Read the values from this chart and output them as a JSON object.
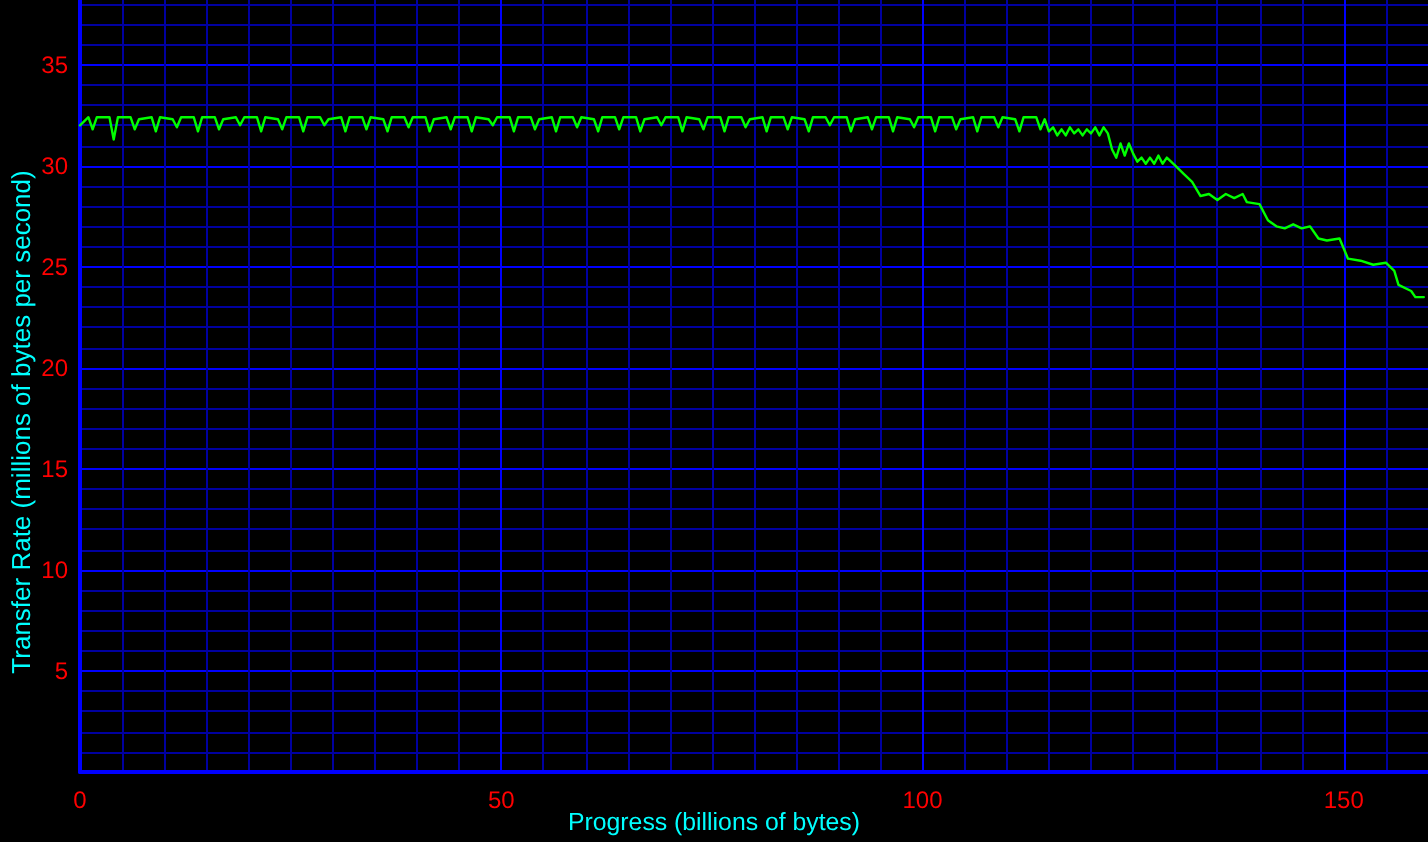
{
  "chart_data": {
    "type": "line",
    "xlabel": "Progress (billions of bytes)",
    "ylabel": "Transfer Rate (millions of bytes per second)",
    "color": "#00ff00",
    "x": [
      0,
      1,
      1.5,
      2,
      3.5,
      4,
      4.5,
      6,
      6.5,
      7,
      8.5,
      9,
      9.5,
      11,
      11.5,
      12,
      13.5,
      14,
      14.5,
      16,
      16.5,
      17,
      18.5,
      19,
      19.5,
      21,
      21.5,
      22,
      23.5,
      24,
      24.5,
      26,
      26.5,
      27,
      28.5,
      29,
      29.5,
      31,
      31.5,
      32,
      33.5,
      34,
      34.5,
      36,
      36.5,
      37,
      38.5,
      39,
      39.5,
      41,
      41.5,
      42,
      43.5,
      44,
      44.5,
      46,
      46.5,
      47,
      48.5,
      49,
      49.5,
      51,
      51.5,
      52,
      53.5,
      54,
      54.5,
      56,
      56.5,
      57,
      58.5,
      59,
      59.5,
      61,
      61.5,
      62,
      63.5,
      64,
      64.5,
      66,
      66.5,
      67,
      68.5,
      69,
      69.5,
      71,
      71.5,
      72,
      73.5,
      74,
      74.5,
      76,
      76.5,
      77,
      78.5,
      79,
      79.5,
      81,
      81.5,
      82,
      83.5,
      84,
      84.5,
      86,
      86.5,
      87,
      88.5,
      89,
      89.5,
      91,
      91.5,
      92,
      93.5,
      94,
      94.5,
      96,
      96.5,
      97,
      98.5,
      99,
      99.5,
      101,
      101.5,
      102,
      103.5,
      104,
      104.5,
      106,
      106.5,
      107,
      108.5,
      109,
      109.5,
      111,
      111.5,
      112,
      113.5,
      114,
      114.5,
      115,
      115.5,
      116,
      116.5,
      117,
      117.5,
      118,
      118.5,
      119,
      119.5,
      120,
      120.5,
      121,
      121.5,
      122,
      122.5,
      123,
      123.5,
      124,
      124.5,
      125,
      125.5,
      126,
      126.5,
      127,
      127.5,
      128,
      128.5,
      129,
      130,
      131,
      132,
      133,
      134,
      135,
      136,
      137,
      138,
      138.5,
      140,
      141,
      142,
      143,
      144,
      145,
      146,
      147,
      148,
      149.5,
      150.5,
      152,
      153.5,
      155,
      156,
      156.5,
      158,
      158.5,
      159.5
    ],
    "values": [
      32.0,
      32.4,
      31.8,
      32.4,
      32.4,
      31.3,
      32.4,
      32.4,
      31.8,
      32.3,
      32.4,
      31.7,
      32.4,
      32.3,
      31.9,
      32.4,
      32.4,
      31.7,
      32.4,
      32.4,
      31.8,
      32.3,
      32.4,
      32.0,
      32.4,
      32.4,
      31.7,
      32.4,
      32.3,
      31.8,
      32.4,
      32.4,
      31.7,
      32.4,
      32.4,
      32.0,
      32.3,
      32.4,
      31.7,
      32.4,
      32.4,
      31.8,
      32.4,
      32.3,
      31.7,
      32.4,
      32.4,
      31.9,
      32.4,
      32.4,
      31.7,
      32.3,
      32.4,
      31.8,
      32.4,
      32.4,
      31.7,
      32.4,
      32.3,
      32.0,
      32.4,
      32.4,
      31.7,
      32.4,
      32.4,
      31.8,
      32.3,
      32.4,
      31.7,
      32.4,
      32.4,
      31.9,
      32.4,
      32.3,
      31.7,
      32.4,
      32.4,
      31.8,
      32.4,
      32.4,
      31.7,
      32.3,
      32.4,
      32.0,
      32.4,
      32.4,
      31.7,
      32.4,
      32.3,
      31.8,
      32.4,
      32.4,
      31.7,
      32.4,
      32.4,
      31.9,
      32.3,
      32.4,
      31.7,
      32.4,
      32.4,
      31.8,
      32.4,
      32.3,
      31.7,
      32.4,
      32.4,
      32.0,
      32.4,
      32.4,
      31.7,
      32.3,
      32.4,
      31.8,
      32.4,
      32.4,
      31.7,
      32.4,
      32.3,
      31.9,
      32.4,
      32.4,
      31.7,
      32.4,
      32.4,
      31.8,
      32.3,
      32.4,
      31.7,
      32.4,
      32.4,
      31.9,
      32.4,
      32.3,
      31.7,
      32.4,
      32.4,
      31.8,
      32.3,
      31.7,
      31.9,
      31.5,
      31.8,
      31.5,
      31.9,
      31.6,
      31.8,
      31.5,
      31.8,
      31.6,
      31.9,
      31.5,
      31.9,
      31.6,
      30.8,
      30.4,
      31.1,
      30.5,
      31.1,
      30.6,
      30.2,
      30.4,
      30.1,
      30.4,
      30.1,
      30.5,
      30.1,
      30.4,
      30.0,
      29.6,
      29.2,
      28.5,
      28.6,
      28.3,
      28.6,
      28.4,
      28.6,
      28.2,
      28.1,
      27.3,
      27.0,
      26.9,
      27.1,
      26.9,
      27.0,
      26.4,
      26.3,
      26.4,
      25.4,
      25.3,
      25.1,
      25.2,
      24.8,
      24.1,
      23.8,
      23.5,
      23.5
    ],
    "xlim": [
      0,
      160
    ],
    "xticks": [
      0,
      {
        "value": 5,
        "label": null
      },
      {
        "value": 10,
        "label": null
      },
      {
        "value": 15,
        "label": null
      },
      {
        "value": 20,
        "label": null
      },
      {
        "value": 25,
        "label": null
      },
      {
        "value": 30,
        "label": null
      },
      {
        "value": 35,
        "label": null
      },
      {
        "value": 40,
        "label": null
      },
      {
        "value": 45,
        "label": null
      },
      50,
      {
        "value": 55,
        "label": null
      },
      {
        "value": 60,
        "label": null
      },
      {
        "value": 65,
        "label": null
      },
      {
        "value": 70,
        "label": null
      },
      {
        "value": 75,
        "label": null
      },
      {
        "value": 80,
        "label": null
      },
      {
        "value": 85,
        "label": null
      },
      {
        "value": 90,
        "label": null
      },
      {
        "value": 95,
        "label": null
      },
      100,
      {
        "value": 105,
        "label": null
      },
      {
        "value": 110,
        "label": null
      },
      {
        "value": 115,
        "label": null
      },
      {
        "value": 120,
        "label": null
      },
      {
        "value": 125,
        "label": null
      },
      {
        "value": 130,
        "label": null
      },
      {
        "value": 135,
        "label": null
      },
      {
        "value": 140,
        "label": null
      },
      {
        "value": 145,
        "label": null
      },
      150,
      {
        "value": 155,
        "label": null
      }
    ],
    "ylim": [
      0,
      38.2
    ],
    "yticks": [
      {
        "value": 0,
        "label": null
      },
      {
        "value": 1,
        "label": null
      },
      {
        "value": 2,
        "label": null
      },
      {
        "value": 3,
        "label": null
      },
      {
        "value": 4,
        "label": null
      },
      5,
      {
        "value": 6,
        "label": null
      },
      {
        "value": 7,
        "label": null
      },
      {
        "value": 8,
        "label": null
      },
      {
        "value": 9,
        "label": null
      },
      10,
      {
        "value": 11,
        "label": null
      },
      {
        "value": 12,
        "label": null
      },
      {
        "value": 13,
        "label": null
      },
      {
        "value": 14,
        "label": null
      },
      15,
      {
        "value": 16,
        "label": null
      },
      {
        "value": 17,
        "label": null
      },
      {
        "value": 18,
        "label": null
      },
      {
        "value": 19,
        "label": null
      },
      20,
      {
        "value": 21,
        "label": null
      },
      {
        "value": 22,
        "label": null
      },
      {
        "value": 23,
        "label": null
      },
      {
        "value": 24,
        "label": null
      },
      25,
      {
        "value": 26,
        "label": null
      },
      {
        "value": 27,
        "label": null
      },
      {
        "value": 28,
        "label": null
      },
      {
        "value": 29,
        "label": null
      },
      30,
      {
        "value": 31,
        "label": null
      },
      {
        "value": 32,
        "label": null
      },
      {
        "value": 33,
        "label": null
      },
      {
        "value": 34,
        "label": null
      },
      35,
      {
        "value": 36,
        "label": null
      },
      {
        "value": 37,
        "label": null
      },
      {
        "value": 38,
        "label": null
      }
    ],
    "grid": true
  }
}
